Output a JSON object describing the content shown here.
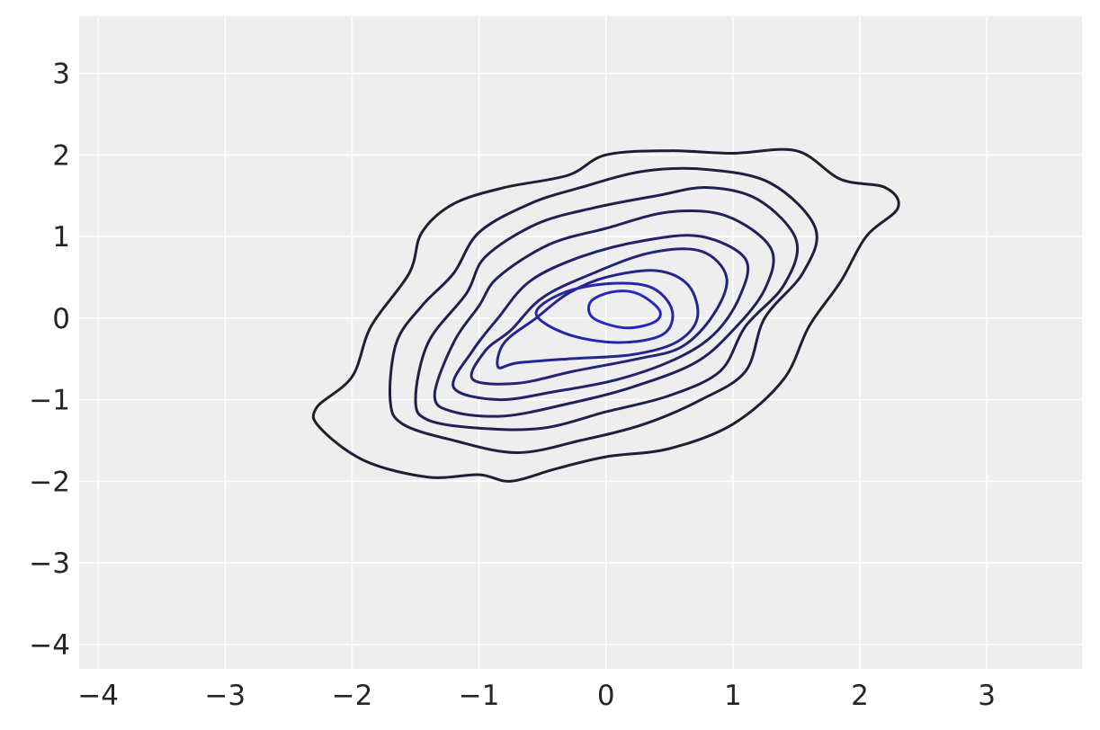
{
  "chart_data": {
    "type": "contour",
    "title": "",
    "xlabel": "",
    "ylabel": "",
    "xlim": [
      -4.15,
      3.75
    ],
    "ylim": [
      -4.3,
      3.7
    ],
    "x_ticks": [
      -4,
      -3,
      -2,
      -1,
      0,
      1,
      2,
      3
    ],
    "x_tick_labels": [
      "−4",
      "−3",
      "−2",
      "−1",
      "0",
      "1",
      "2",
      "3"
    ],
    "y_ticks": [
      3,
      2,
      1,
      0,
      -1,
      -2,
      -3,
      -4
    ],
    "y_tick_labels": [
      "3",
      "2",
      "1",
      "0",
      "−1",
      "−2",
      "−3",
      "−4"
    ],
    "grid": true,
    "background_color": "#eeeeee",
    "grid_color": "#ffffff",
    "contours": [
      {
        "level": 1,
        "color": "#1f1f33",
        "points": [
          [
            -2.28,
            -1.1
          ],
          [
            -2.0,
            -0.72
          ],
          [
            -1.85,
            -0.1
          ],
          [
            -1.55,
            0.55
          ],
          [
            -1.45,
            1.05
          ],
          [
            -1.2,
            1.4
          ],
          [
            -0.8,
            1.6
          ],
          [
            -0.3,
            1.75
          ],
          [
            0.0,
            2.0
          ],
          [
            0.5,
            2.05
          ],
          [
            1.0,
            2.02
          ],
          [
            1.5,
            2.05
          ],
          [
            1.85,
            1.7
          ],
          [
            2.2,
            1.6
          ],
          [
            2.3,
            1.35
          ],
          [
            2.05,
            1.0
          ],
          [
            1.85,
            0.45
          ],
          [
            1.6,
            -0.1
          ],
          [
            1.4,
            -0.75
          ],
          [
            1.0,
            -1.3
          ],
          [
            0.5,
            -1.6
          ],
          [
            0.0,
            -1.7
          ],
          [
            -0.4,
            -1.85
          ],
          [
            -0.75,
            -2.0
          ],
          [
            -1.0,
            -1.92
          ],
          [
            -1.4,
            -1.95
          ],
          [
            -1.9,
            -1.75
          ],
          [
            -2.25,
            -1.35
          ]
        ]
      },
      {
        "level": 2,
        "color": "#1f1f40",
        "points": [
          [
            -1.7,
            -1.0
          ],
          [
            -1.65,
            -0.3
          ],
          [
            -1.45,
            0.15
          ],
          [
            -1.2,
            0.55
          ],
          [
            -1.0,
            1.05
          ],
          [
            -0.6,
            1.4
          ],
          [
            -0.2,
            1.6
          ],
          [
            0.3,
            1.8
          ],
          [
            0.8,
            1.82
          ],
          [
            1.3,
            1.65
          ],
          [
            1.65,
            1.1
          ],
          [
            1.55,
            0.55
          ],
          [
            1.25,
            0.0
          ],
          [
            1.1,
            -0.65
          ],
          [
            0.75,
            -1.0
          ],
          [
            0.3,
            -1.3
          ],
          [
            -0.2,
            -1.5
          ],
          [
            -0.7,
            -1.65
          ],
          [
            -1.2,
            -1.5
          ],
          [
            -1.6,
            -1.3
          ]
        ]
      },
      {
        "level": 3,
        "color": "#20204e",
        "points": [
          [
            -1.5,
            -1.0
          ],
          [
            -1.4,
            -0.3
          ],
          [
            -1.1,
            0.3
          ],
          [
            -0.95,
            0.75
          ],
          [
            -0.55,
            1.15
          ],
          [
            -0.1,
            1.35
          ],
          [
            0.4,
            1.5
          ],
          [
            0.8,
            1.6
          ],
          [
            1.2,
            1.45
          ],
          [
            1.5,
            0.95
          ],
          [
            1.4,
            0.4
          ],
          [
            1.1,
            -0.1
          ],
          [
            0.9,
            -0.65
          ],
          [
            0.5,
            -0.95
          ],
          [
            0.0,
            -1.15
          ],
          [
            -0.5,
            -1.35
          ],
          [
            -1.0,
            -1.35
          ],
          [
            -1.4,
            -1.25
          ]
        ]
      },
      {
        "level": 4,
        "color": "#21215b",
        "points": [
          [
            -1.35,
            -0.95
          ],
          [
            -1.2,
            -0.3
          ],
          [
            -1.0,
            0.15
          ],
          [
            -0.85,
            0.5
          ],
          [
            -0.45,
            0.9
          ],
          [
            0.0,
            1.1
          ],
          [
            0.5,
            1.3
          ],
          [
            0.95,
            1.25
          ],
          [
            1.3,
            0.85
          ],
          [
            1.25,
            0.35
          ],
          [
            1.0,
            -0.15
          ],
          [
            0.7,
            -0.55
          ],
          [
            0.2,
            -0.85
          ],
          [
            -0.3,
            -1.05
          ],
          [
            -0.8,
            -1.2
          ],
          [
            -1.2,
            -1.15
          ]
        ]
      },
      {
        "level": 5,
        "color": "#222268",
        "points": [
          [
            -1.2,
            -0.85
          ],
          [
            -1.05,
            -0.4
          ],
          [
            -0.85,
            0.0
          ],
          [
            -0.6,
            0.45
          ],
          [
            -0.2,
            0.75
          ],
          [
            0.3,
            0.95
          ],
          [
            0.75,
            1.0
          ],
          [
            1.1,
            0.72
          ],
          [
            1.05,
            0.25
          ],
          [
            0.85,
            -0.2
          ],
          [
            0.55,
            -0.5
          ],
          [
            0.1,
            -0.75
          ],
          [
            -0.4,
            -0.9
          ],
          [
            -0.85,
            -1.0
          ]
        ]
      },
      {
        "level": 6,
        "color": "#232378",
        "points": [
          [
            -1.05,
            -0.75
          ],
          [
            -0.95,
            -0.4
          ],
          [
            -0.75,
            -0.15
          ],
          [
            -0.5,
            0.25
          ],
          [
            -0.1,
            0.55
          ],
          [
            0.35,
            0.8
          ],
          [
            0.75,
            0.82
          ],
          [
            0.95,
            0.5
          ],
          [
            0.85,
            0.05
          ],
          [
            0.6,
            -0.35
          ],
          [
            0.25,
            -0.5
          ],
          [
            -0.25,
            -0.65
          ],
          [
            -0.7,
            -0.8
          ]
        ]
      },
      {
        "level": 7,
        "color": "#252590",
        "points": [
          [
            -0.85,
            -0.6
          ],
          [
            -0.8,
            -0.3
          ],
          [
            -0.55,
            0.0
          ],
          [
            -0.3,
            0.3
          ],
          [
            0.0,
            0.5
          ],
          [
            0.4,
            0.58
          ],
          [
            0.65,
            0.4
          ],
          [
            0.72,
            0.0
          ],
          [
            0.55,
            -0.3
          ],
          [
            0.2,
            -0.45
          ],
          [
            -0.3,
            -0.5
          ],
          [
            -0.7,
            -0.55
          ]
        ]
      },
      {
        "level": 8,
        "color": "#2626a8",
        "points": [
          [
            -0.55,
            0.05
          ],
          [
            -0.3,
            -0.2
          ],
          [
            0.1,
            -0.3
          ],
          [
            0.45,
            -0.2
          ],
          [
            0.52,
            0.1
          ],
          [
            0.35,
            0.38
          ],
          [
            0.0,
            0.42
          ],
          [
            -0.35,
            0.3
          ]
        ]
      },
      {
        "level": 9,
        "color": "#2828c0",
        "points": [
          [
            -0.1,
            0.0
          ],
          [
            0.15,
            -0.12
          ],
          [
            0.38,
            -0.05
          ],
          [
            0.42,
            0.1
          ],
          [
            0.25,
            0.3
          ],
          [
            0.05,
            0.32
          ],
          [
            -0.12,
            0.2
          ]
        ]
      }
    ]
  }
}
